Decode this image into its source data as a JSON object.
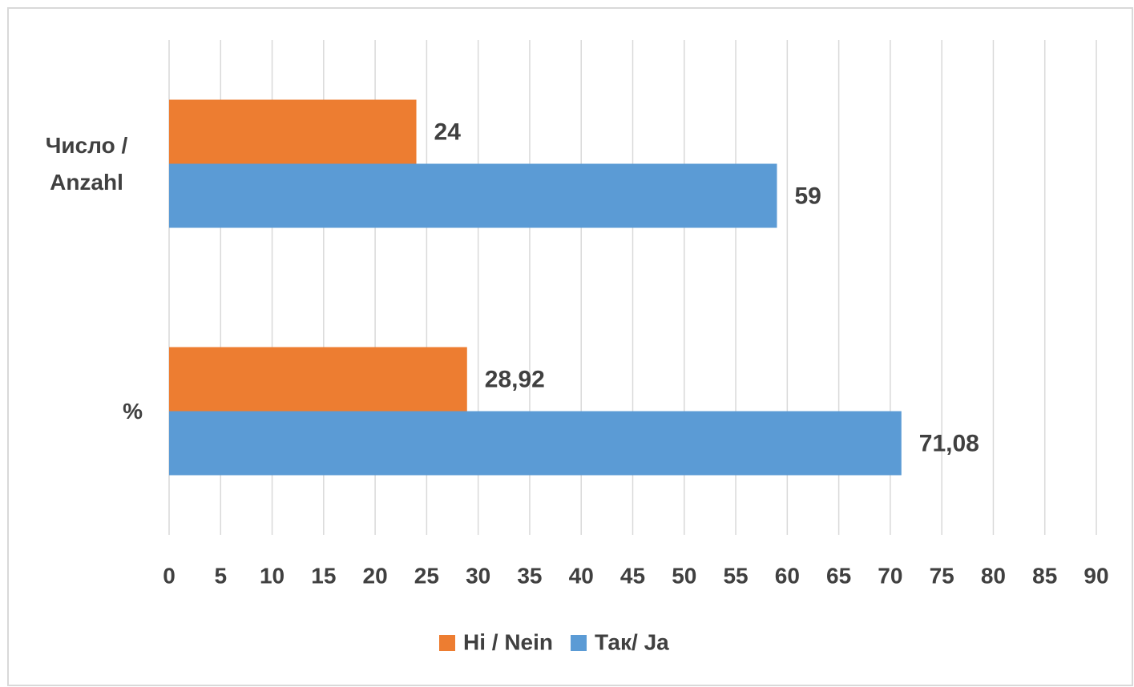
{
  "chart_data": {
    "type": "hbar",
    "categories": [
      "Число / Anzahl",
      "%"
    ],
    "series": [
      {
        "name": "Ні / Nein",
        "color": "#ed7d31",
        "values": [
          24,
          28.92
        ],
        "value_labels": [
          "24",
          "28,92"
        ]
      },
      {
        "name": "Так/ Ja",
        "color": "#5b9bd5",
        "values": [
          59,
          71.08
        ],
        "value_labels": [
          "59",
          "71,08"
        ]
      }
    ],
    "xlim": [
      0,
      90
    ],
    "xticks": [
      0,
      5,
      10,
      15,
      20,
      25,
      30,
      35,
      40,
      45,
      50,
      55,
      60,
      65,
      70,
      75,
      80,
      85,
      90
    ],
    "grid": true,
    "legend": "bottom"
  }
}
